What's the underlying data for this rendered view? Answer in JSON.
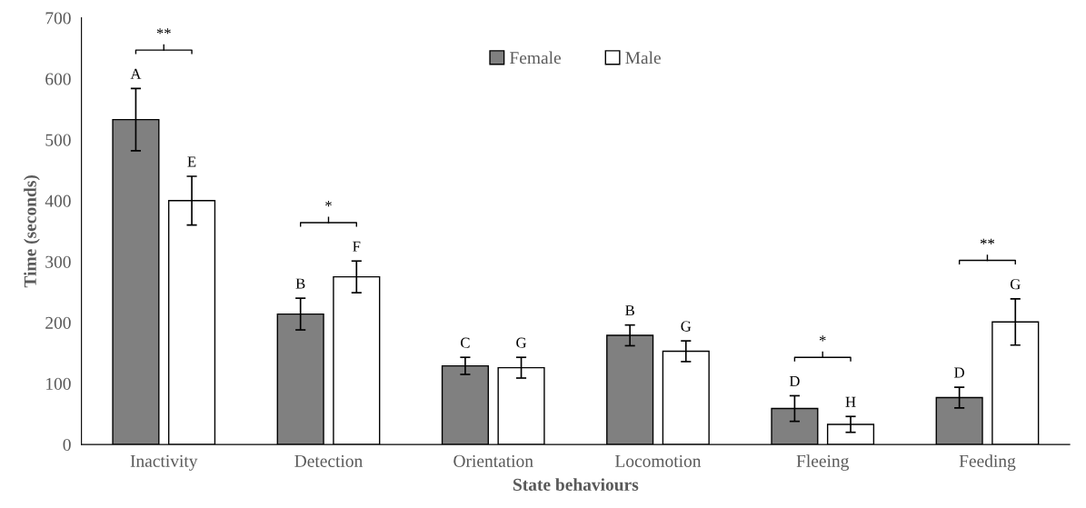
{
  "chart_data": {
    "type": "bar",
    "xlabel": "State behaviours",
    "ylabel": "Time (seconds)",
    "categories": [
      "Inactivity",
      "Detection",
      "Orientation",
      "Locomotion",
      "Fleeing",
      "Feeding"
    ],
    "series": [
      {
        "name": "Female",
        "color": "#808080",
        "values": [
          533,
          214,
          129,
          179,
          59,
          77
        ],
        "errors": [
          51,
          26,
          14,
          17,
          21,
          17
        ],
        "value_labels": [
          "A",
          "B",
          "C",
          "B",
          "D",
          "D"
        ]
      },
      {
        "name": "Male",
        "color": "#ffffff",
        "values": [
          400,
          275,
          126,
          153,
          33,
          201
        ],
        "errors": [
          40,
          26,
          17,
          17,
          13,
          38
        ],
        "value_labels": [
          "E",
          "F",
          "G",
          "G",
          "H",
          "G"
        ]
      }
    ],
    "ylim": [
      0,
      700
    ],
    "yticks": [
      0,
      100,
      200,
      300,
      400,
      500,
      600,
      700
    ],
    "annotations": [
      "**",
      "*",
      "*",
      "**"
    ],
    "legend": "top",
    "grid": false
  }
}
